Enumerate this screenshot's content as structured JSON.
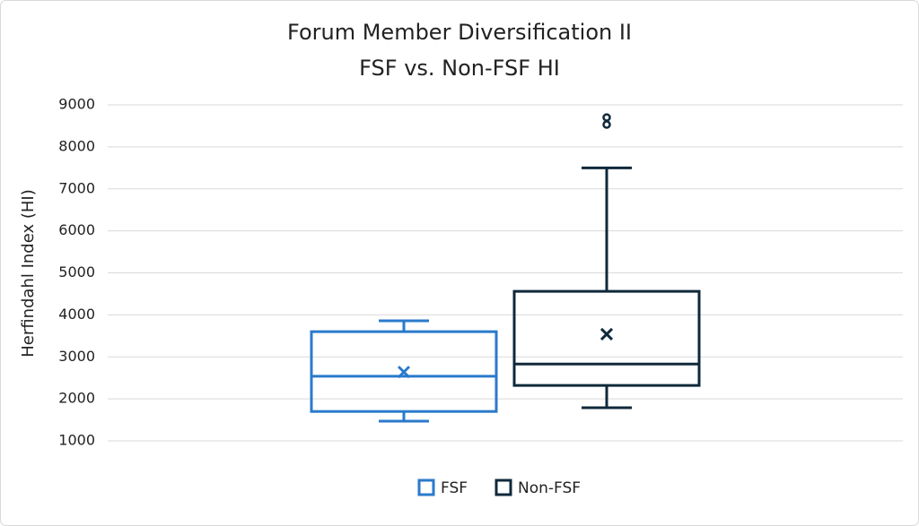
{
  "chart_data": {
    "type": "box",
    "title": "Forum Member Diversification II",
    "subtitle": "FSF vs. Non-FSF HI",
    "y_label": "Herfindahl Index (HI)",
    "ylim": [
      1000,
      9000
    ],
    "yticks": [
      1000,
      2000,
      3000,
      4000,
      5000,
      6000,
      7000,
      8000,
      9000
    ],
    "grid": true,
    "legend": "bottom",
    "series": [
      {
        "name": "FSF",
        "color": "#2a7acb",
        "min": 1470,
        "q1": 1700,
        "median": 2540,
        "q3": 3600,
        "max": 3860,
        "mean": 2640,
        "outliers": []
      },
      {
        "name": "Non-FSF",
        "color": "#10293b",
        "min": 1790,
        "q1": 2320,
        "median": 2830,
        "q3": 4560,
        "max": 7500,
        "mean": 3540,
        "outliers": [
          8700,
          8530
        ]
      }
    ]
  }
}
